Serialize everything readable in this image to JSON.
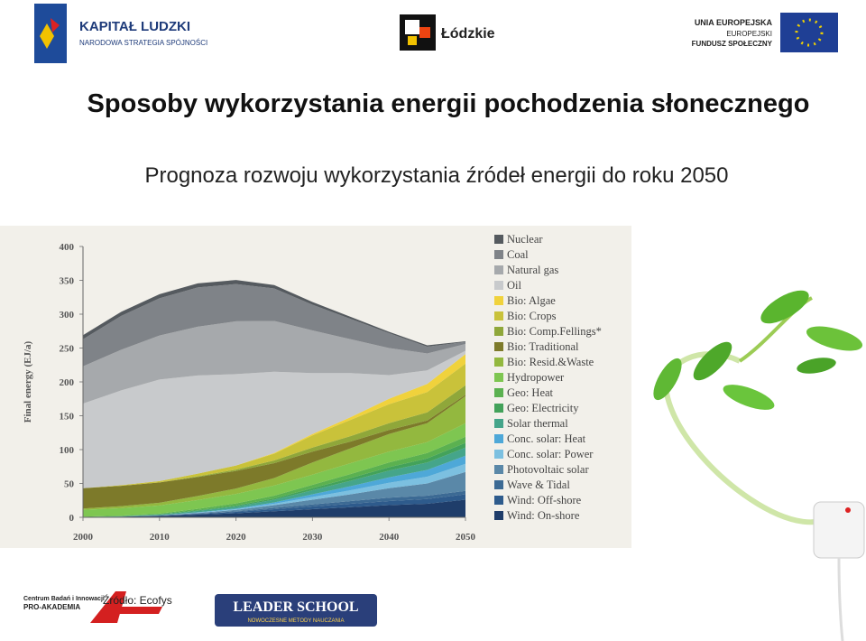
{
  "header": {
    "logo_left": {
      "title": "KAPITAŁ LUDZKI",
      "subtitle": "NARODOWA STRATEGIA SPÓJNOŚCI"
    },
    "logo_center": {
      "title": "Łódzkie"
    },
    "logo_right": {
      "line1": "UNIA EUROPEJSKA",
      "line2": "EUROPEJSKI",
      "line3": "FUNDUSZ SPOŁECZNY"
    }
  },
  "slide_title": "Sposoby wykorzystania energii pochodzenia słonecznego",
  "slide_subtitle": "Prognoza rozwoju  wykorzystania źródeł energii do roku 2050",
  "footer": {
    "source": "Źródło: Ecofys",
    "logo_pa": {
      "line1": "Centrum Badań i Innowacji",
      "line2": "PRO-AKADEMIA"
    },
    "logo_ls": {
      "title": "LEADER SCHOOL",
      "subtitle": "NOWOCZESNE METODY NAUCZANIA"
    }
  },
  "chart_data": {
    "type": "stacked_area",
    "y_label": "Final energy (EJ/a)",
    "x": [
      2000,
      2005,
      2010,
      2015,
      2020,
      2025,
      2030,
      2035,
      2040,
      2045,
      2050
    ],
    "xlim": [
      2000,
      2050
    ],
    "xticks": [
      2000,
      2010,
      2020,
      2030,
      2040,
      2050
    ],
    "ylim": [
      0,
      400
    ],
    "yticks": [
      0,
      50,
      100,
      150,
      200,
      250,
      300,
      350,
      400
    ],
    "series": [
      {
        "name": "Wind: On-shore",
        "color": "#1f3d6a",
        "values": [
          0.5,
          1,
          2,
          4,
          6,
          9,
          12,
          15,
          18,
          20,
          26
        ]
      },
      {
        "name": "Wind: Off-shore",
        "color": "#2e5b8c",
        "values": [
          0,
          0,
          0.5,
          1,
          2,
          3,
          4,
          5,
          6,
          7,
          8
        ]
      },
      {
        "name": "Wave & Tidal",
        "color": "#3c6a94",
        "values": [
          0,
          0,
          0,
          0.5,
          1,
          2,
          3,
          4,
          5,
          5,
          5
        ]
      },
      {
        "name": "Photovoltaic solar",
        "color": "#5a88a8",
        "values": [
          0,
          0,
          0.5,
          1,
          2,
          4,
          7,
          10,
          14,
          18,
          28
        ]
      },
      {
        "name": "Conc. solar: Power",
        "color": "#7cc0e0",
        "values": [
          0,
          0,
          0,
          0.5,
          1,
          2,
          4,
          6,
          8,
          10,
          12
        ]
      },
      {
        "name": "Conc. solar: Heat",
        "color": "#4ea8d8",
        "values": [
          0,
          0,
          0,
          0.5,
          1,
          2,
          4,
          6,
          8,
          10,
          12
        ]
      },
      {
        "name": "Solar thermal",
        "color": "#45a58a",
        "values": [
          0,
          0.5,
          1,
          2,
          3,
          4,
          6,
          8,
          10,
          11,
          12
        ]
      },
      {
        "name": "Geo: Electricity",
        "color": "#43a25a",
        "values": [
          0,
          0,
          0.5,
          1,
          1.5,
          2,
          3,
          4,
          5,
          6,
          7
        ]
      },
      {
        "name": "Geo: Heat",
        "color": "#5bb150",
        "values": [
          0.5,
          1,
          1,
          2,
          3,
          4,
          5,
          6,
          7,
          8,
          9
        ]
      },
      {
        "name": "Hydropower",
        "color": "#7ec651",
        "values": [
          10,
          11,
          12,
          13,
          14,
          15,
          15,
          16,
          16,
          16,
          20
        ]
      },
      {
        "name": "Bio: Resid.&Waste",
        "color": "#93b83f",
        "values": [
          2,
          3,
          4,
          6,
          8,
          11,
          18,
          22,
          26,
          28,
          40
        ]
      },
      {
        "name": "Bio: Traditional",
        "color": "#7d7a2a",
        "values": [
          30,
          30,
          30,
          28,
          26,
          22,
          16,
          10,
          6,
          4,
          2
        ]
      },
      {
        "name": "Bio: Comp.Fellings*",
        "color": "#8fa73a",
        "values": [
          0,
          0,
          0,
          1,
          2,
          4,
          6,
          8,
          10,
          12,
          14
        ]
      },
      {
        "name": "Bio: Crops",
        "color": "#c9c23a",
        "values": [
          0,
          1,
          2,
          4,
          6,
          10,
          18,
          24,
          28,
          30,
          32
        ]
      },
      {
        "name": "Bio: Algae",
        "color": "#f0d23c",
        "values": [
          0,
          0,
          0,
          0,
          0,
          1,
          2,
          4,
          8,
          12,
          14
        ]
      },
      {
        "name": "Oil",
        "color": "#c8cacc",
        "values": [
          125,
          140,
          150,
          145,
          135,
          120,
          90,
          65,
          35,
          20,
          5
        ]
      },
      {
        "name": "Natural gas",
        "color": "#a6a9ac",
        "values": [
          55,
          60,
          65,
          72,
          78,
          75,
          63,
          50,
          40,
          25,
          10
        ]
      },
      {
        "name": "Coal",
        "color": "#7f8388",
        "values": [
          40,
          50,
          55,
          58,
          55,
          48,
          38,
          30,
          22,
          10,
          3
        ]
      },
      {
        "name": "Nuclear",
        "color": "#555a5f",
        "values": [
          6,
          6,
          6,
          6,
          6,
          5,
          4,
          3,
          2,
          2,
          1
        ]
      }
    ]
  }
}
